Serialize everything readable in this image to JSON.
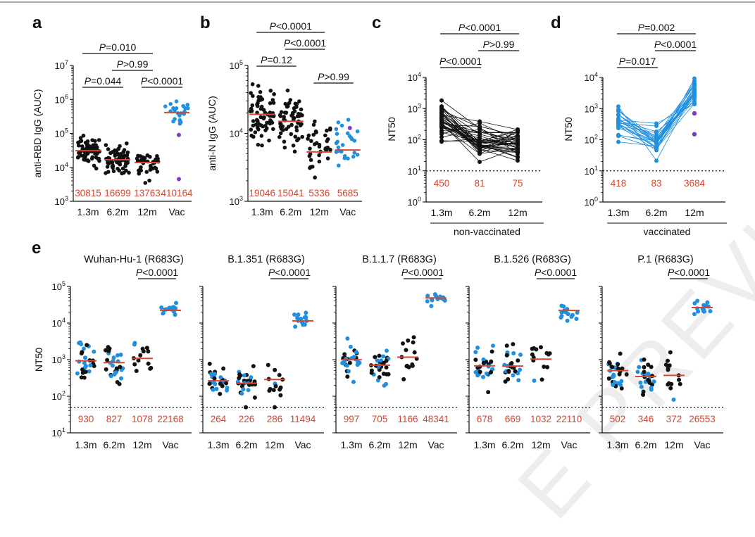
{
  "watermark": "E PREVIEW",
  "colors": {
    "black": "#111111",
    "blue": "#1f8fde",
    "purple": "#7b3fbe",
    "median": "#d6452f",
    "value": "#d6452f"
  },
  "chart_data": [
    {
      "id": "a",
      "panel_label": "a",
      "type": "scatter",
      "ylabel": "anti-RBD IgG (AUC)",
      "ylim_log10": [
        3,
        7
      ],
      "yticks": [
        {
          "text": "10",
          "sup": "3"
        },
        {
          "text": "10",
          "sup": "4"
        },
        {
          "text": "10",
          "sup": "5"
        },
        {
          "text": "10",
          "sup": "6"
        },
        {
          "text": "10",
          "sup": "7"
        }
      ],
      "categories": [
        "1.3m",
        "6.2m",
        "12m",
        "Vac"
      ],
      "medians": [
        30815,
        16699,
        13763,
        410164
      ],
      "median_labels": [
        "30815",
        "16699",
        "13763",
        "410164"
      ],
      "point_colors": [
        "black",
        "black",
        "black",
        "blue"
      ],
      "n_points": [
        70,
        70,
        40,
        22
      ],
      "extra_points": [
        {
          "cat": 3,
          "value": 90000,
          "color": "purple"
        },
        {
          "cat": 3,
          "value": 4500,
          "color": "purple"
        }
      ],
      "brackets": [
        {
          "from": 0,
          "to": 2,
          "level": 0,
          "italic": "P",
          "text": "=0.010"
        },
        {
          "from": 1,
          "to": 2,
          "level": 1,
          "italic": "P",
          "text": ">0.99"
        },
        {
          "from": 0,
          "to": 1,
          "level": 2,
          "italic": "P",
          "text": "=0.044"
        },
        {
          "from": 2,
          "to": 3,
          "level": 2,
          "italic": "P",
          "text": "<0.0001"
        }
      ]
    },
    {
      "id": "b",
      "panel_label": "b",
      "type": "scatter",
      "ylabel": "anti-N IgG (AUC)",
      "ylim_log10": [
        3,
        5
      ],
      "yticks": [
        {
          "text": "10",
          "sup": "3"
        },
        {
          "text": "10",
          "sup": "4"
        },
        {
          "text": "10",
          "sup": "5"
        }
      ],
      "categories": [
        "1.3m",
        "6.2m",
        "12m",
        "Vac"
      ],
      "medians": [
        19046,
        15041,
        5336,
        5685
      ],
      "median_labels": [
        "19046",
        "15041",
        "5336",
        "5685"
      ],
      "point_colors": [
        "black",
        "black",
        "black",
        "blue"
      ],
      "n_points": [
        70,
        60,
        35,
        25
      ],
      "extra_points": [
        {
          "cat": 3,
          "value": 12000,
          "color": "purple"
        }
      ],
      "brackets": [
        {
          "from": 0,
          "to": 2,
          "level": 0,
          "italic": "P",
          "text": "<0.0001"
        },
        {
          "from": 1,
          "to": 2,
          "level": 1,
          "italic": "P",
          "text": "<0.0001"
        },
        {
          "from": 0,
          "to": 1,
          "level": 2,
          "italic": "P",
          "text": "=0.12"
        },
        {
          "from": 2,
          "to": 3,
          "level": 3,
          "italic": "P",
          "text": ">0.99"
        }
      ]
    },
    {
      "id": "c",
      "panel_label": "c",
      "type": "paired-line",
      "ylabel": "NT50",
      "ylim_log10": [
        0,
        4
      ],
      "yticks": [
        {
          "text": "10",
          "sup": "0"
        },
        {
          "text": "10",
          "sup": "1"
        },
        {
          "text": "10",
          "sup": "2"
        },
        {
          "text": "10",
          "sup": "3"
        },
        {
          "text": "10",
          "sup": "4"
        }
      ],
      "categories": [
        "1.3m",
        "6.2m",
        "12m"
      ],
      "group_label": "non-vaccinated",
      "medians": [
        450,
        81,
        75
      ],
      "median_labels": [
        "450",
        "81",
        "75"
      ],
      "line_color": "black",
      "n_lines": 42,
      "detection_limit": 10,
      "brackets": [
        {
          "from": 0,
          "to": 2,
          "level": 0,
          "italic": "P",
          "text": "<0.0001"
        },
        {
          "from": 1,
          "to": 2,
          "level": 1,
          "italic": "P",
          "text": ">0.99"
        },
        {
          "from": 0,
          "to": 1,
          "level": 2,
          "italic": "P",
          "text": "<0.0001"
        }
      ]
    },
    {
      "id": "d",
      "panel_label": "d",
      "type": "paired-line",
      "ylabel": "NT50",
      "ylim_log10": [
        0,
        4
      ],
      "yticks": [
        {
          "text": "10",
          "sup": "0"
        },
        {
          "text": "10",
          "sup": "1"
        },
        {
          "text": "10",
          "sup": "2"
        },
        {
          "text": "10",
          "sup": "3"
        },
        {
          "text": "10",
          "sup": "4"
        }
      ],
      "categories": [
        "1.3m",
        "6.2m",
        "12m"
      ],
      "group_label": "vaccinated",
      "medians": [
        418,
        83,
        3684
      ],
      "median_labels": [
        "418",
        "83",
        "3684"
      ],
      "line_color": "blue",
      "n_lines": 26,
      "detection_limit": 10,
      "purple_endpoints": [
        700,
        150
      ],
      "brackets": [
        {
          "from": 0,
          "to": 2,
          "level": 0,
          "italic": "P",
          "text": "=0.002"
        },
        {
          "from": 1,
          "to": 2,
          "level": 1,
          "italic": "P",
          "text": "<0.0001"
        },
        {
          "from": 0,
          "to": 1,
          "level": 2,
          "italic": "P",
          "text": "=0.017"
        }
      ]
    },
    {
      "id": "e",
      "panel_label": "e",
      "type": "scatter-multi",
      "ylabel": "NT50",
      "ylim_log10": [
        1,
        5
      ],
      "yticks": [
        {
          "text": "10",
          "sup": "1"
        },
        {
          "text": "10",
          "sup": "2"
        },
        {
          "text": "10",
          "sup": "3"
        },
        {
          "text": "10",
          "sup": "4"
        },
        {
          "text": "10",
          "sup": "5"
        }
      ],
      "categories": [
        "1.3m",
        "6.2m",
        "12m",
        "Vac"
      ],
      "detection_limit": 50,
      "subpanels": [
        {
          "title": "Wuhan-Hu-1 (R683G)",
          "medians": [
            930,
            827,
            1078,
            22168
          ],
          "median_labels": [
            "930",
            "827",
            "1078",
            "22168"
          ],
          "bracket": {
            "italic": "P",
            "text": "<0.0001"
          }
        },
        {
          "title": "B.1.351 (R683G)",
          "medians": [
            264,
            226,
            286,
            11494
          ],
          "median_labels": [
            "264",
            "226",
            "286",
            "11494"
          ],
          "bracket": {
            "italic": "P",
            "text": "<0.0001"
          }
        },
        {
          "title": "B.1.1.7 (R683G)",
          "medians": [
            997,
            705,
            1166,
            48341
          ],
          "median_labels": [
            "997",
            "705",
            "1166",
            "48341"
          ],
          "bracket": {
            "italic": "P",
            "text": "<0.0001"
          }
        },
        {
          "title": "B.1.526 (R683G)",
          "medians": [
            678,
            669,
            1032,
            22110
          ],
          "median_labels": [
            "678",
            "669",
            "1032",
            "22110"
          ],
          "bracket": {
            "italic": "P",
            "text": "<0.0001"
          }
        },
        {
          "title": "P.1 (R683G)",
          "medians": [
            502,
            346,
            372,
            26553
          ],
          "median_labels": [
            "502",
            "346",
            "372",
            "26553"
          ],
          "bracket": {
            "italic": "P",
            "text": "<0.0001"
          }
        }
      ]
    }
  ]
}
